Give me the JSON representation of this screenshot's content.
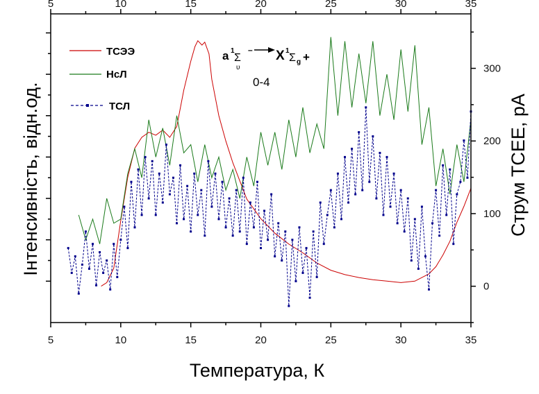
{
  "chart_data": {
    "type": "line",
    "xlabel": "Температура,  К",
    "ylabel_left": "Інтенсивність,  відн.од.",
    "ylabel_right": "Струм  ТСЕЕ,  pA",
    "xlim": [
      5,
      35
    ],
    "xticks": [
      "5",
      "10",
      "15",
      "20",
      "25",
      "30",
      "35"
    ],
    "ylim_left": [
      -1,
      6.46
    ],
    "ylim_right": [
      -50,
      375
    ],
    "yticks_right": [
      "0",
      "100",
      "200",
      "300"
    ],
    "annotation": {
      "transition_left": "a",
      "sup1": "1",
      "sigma": "Σ",
      "sub_u": "υ",
      "minus": "–",
      "transition_right": "X",
      "sup2": "1",
      "sub_g": "g",
      "plus": "+",
      "band": "0-4"
    },
    "legend": [
      {
        "label": "ТСЭЭ",
        "color": "#cc0000"
      },
      {
        "label": "НсЛ",
        "color": "#1a7a1a"
      },
      {
        "label": "ТСЛ",
        "color": "#00008b"
      }
    ],
    "series": [
      {
        "name": "ТСЭЭ",
        "axis": "right",
        "color": "#cc0000",
        "x": [
          8.6,
          9.0,
          9.5,
          10.0,
          10.5,
          11.0,
          11.5,
          12.0,
          12.5,
          13.0,
          13.5,
          14.0,
          14.5,
          15.0,
          15.3,
          15.5,
          15.8,
          16.0,
          16.3,
          16.5,
          17.0,
          17.5,
          18.0,
          19.0,
          20.0,
          21.0,
          22.0,
          23.0,
          24.0,
          25.0,
          26.0,
          27.0,
          28.0,
          29.0,
          30.0,
          31.0,
          32.0,
          32.5,
          33.0,
          33.5,
          34.0,
          34.5,
          35.0
        ],
        "y": [
          0,
          5,
          25,
          90,
          150,
          190,
          205,
          212,
          208,
          215,
          205,
          220,
          270,
          310,
          330,
          338,
          332,
          336,
          320,
          285,
          235,
          200,
          170,
          120,
          93,
          73,
          58,
          46,
          32,
          22,
          16,
          12,
          9,
          7,
          5,
          7,
          17,
          27,
          43,
          62,
          88,
          110,
          135
        ]
      },
      {
        "name": "НсЛ",
        "axis": "left",
        "color": "#1a7a1a",
        "x_start": 7.0,
        "x_step": 0.5,
        "y": [
          1.6,
          1.0,
          1.5,
          0.9,
          2.0,
          1.4,
          1.5,
          2.6,
          3.2,
          2.5,
          3.9,
          3.0,
          3.7,
          2.8,
          4.0,
          3.1,
          3.3,
          2.4,
          3.3,
          2.5,
          3.0,
          2.2,
          2.7,
          2.0,
          3.0,
          2.3,
          3.6,
          2.8,
          3.6,
          2.7,
          3.9,
          3.0,
          4.2,
          3.1,
          3.8,
          3.2,
          5.9,
          4.0,
          5.8,
          4.2,
          5.5,
          4.3,
          5.8,
          4.0,
          5.0,
          3.9,
          5.6,
          4.1,
          5.7,
          3.3,
          4.2,
          2.3,
          3.2,
          2.1,
          3.3,
          2.4,
          3.9
        ]
      },
      {
        "name": "ТСЛ",
        "axis": "left",
        "color": "#00008b",
        "x_start": 6.25,
        "x_step": 0.25,
        "y": [
          0.8,
          0.2,
          0.6,
          -0.3,
          0.4,
          1.2,
          0.3,
          0.9,
          -0.1,
          0.7,
          0.2,
          0.5,
          -0.2,
          0.9,
          0.1,
          1.0,
          1.8,
          0.8,
          2.4,
          1.3,
          2.7,
          1.6,
          3.0,
          2.0,
          2.9,
          1.6,
          2.6,
          1.9,
          3.3,
          2.1,
          2.5,
          1.4,
          2.8,
          1.5,
          2.3,
          1.2,
          2.6,
          1.6,
          2.2,
          1.1,
          2.9,
          1.8,
          2.6,
          1.5,
          2.4,
          1.3,
          2.0,
          1.1,
          2.2,
          1.2,
          2.5,
          0.9,
          1.9,
          1.3,
          2.4,
          0.8,
          1.7,
          1.0,
          2.1,
          0.6,
          1.4,
          0.5,
          1.2,
          -0.6,
          1.0,
          0.0,
          1.3,
          0.2,
          0.8,
          -0.4,
          1.2,
          0.1,
          1.9,
          0.9,
          1.6,
          2.2,
          1.3,
          2.6,
          1.5,
          3.0,
          1.9,
          3.2,
          2.1,
          3.6,
          2.2,
          4.2,
          2.4,
          3.5,
          2.0,
          3.1,
          1.6,
          3.0,
          1.8,
          2.6,
          1.4,
          2.2,
          1.2,
          2.0,
          0.5,
          1.5,
          0.3,
          1.8,
          0.6,
          -0.2,
          1.4,
          2.2,
          1.1,
          2.8,
          1.6,
          2.7,
          0.9,
          2.1,
          2.4,
          3.4,
          2.5,
          4.1
        ]
      }
    ]
  }
}
